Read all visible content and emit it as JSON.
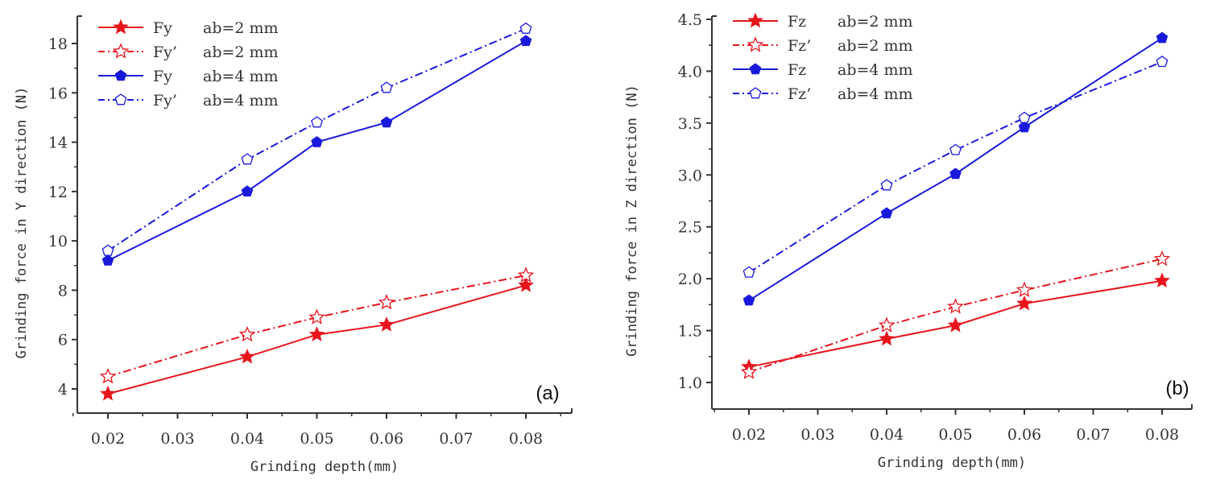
{
  "chart_data": [
    {
      "type": "line",
      "panel_label": "(a)",
      "xlabel": "Grinding depth(mm)",
      "ylabel": "Grinding force in Y direction (N)",
      "x": [
        0.02,
        0.04,
        0.05,
        0.06,
        0.08
      ],
      "xlim": [
        0.014,
        0.084
      ],
      "xticks": [
        0.02,
        0.03,
        0.04,
        0.05,
        0.06,
        0.07,
        0.08
      ],
      "xtick_labels": [
        "0.02",
        "0.03",
        "0.04",
        "0.05",
        "0.06",
        "0.07",
        "0.08"
      ],
      "ylim": [
        3.0,
        18.9
      ],
      "yticks": [
        4,
        6,
        8,
        10,
        12,
        14,
        16,
        18
      ],
      "ytick_labels": [
        "4",
        "6",
        "8",
        "10",
        "12",
        "14",
        "16",
        "18"
      ],
      "grid": false,
      "legend_position": "top-left",
      "series": [
        {
          "name": "Fy",
          "param": "ab=2 mm",
          "values": [
            3.8,
            5.3,
            6.2,
            6.6,
            8.2
          ],
          "color": "#e8141c",
          "style": "solid",
          "marker": "star-filled"
        },
        {
          "name": "Fy’",
          "param": "ab=2 mm",
          "values": [
            4.5,
            6.2,
            6.9,
            7.5,
            8.6
          ],
          "color": "#e8141c",
          "style": "dashdot",
          "marker": "star-open"
        },
        {
          "name": "Fy",
          "param": "ab=4 mm",
          "values": [
            9.2,
            12.0,
            14.0,
            14.8,
            18.1
          ],
          "color": "#1a1adc",
          "style": "solid",
          "marker": "pentagon-filled"
        },
        {
          "name": "Fy’",
          "param": "ab=4 mm",
          "values": [
            9.6,
            13.3,
            14.8,
            16.2,
            18.6
          ],
          "color": "#1a1adc",
          "style": "dashdot",
          "marker": "pentagon-open"
        }
      ]
    },
    {
      "type": "line",
      "panel_label": "(b)",
      "xlabel": "Grinding depth(mm)",
      "ylabel": "Grinding force in Z direction (N)",
      "x": [
        0.02,
        0.04,
        0.05,
        0.06,
        0.08
      ],
      "xlim": [
        0.014,
        0.084
      ],
      "xticks": [
        0.02,
        0.03,
        0.04,
        0.05,
        0.06,
        0.07,
        0.08
      ],
      "xtick_labels": [
        "0.02",
        "0.03",
        "0.04",
        "0.05",
        "0.06",
        "0.07",
        "0.08"
      ],
      "ylim": [
        0.75,
        4.5
      ],
      "yticks": [
        1.0,
        1.5,
        2.0,
        2.5,
        3.0,
        3.5,
        4.0,
        4.5
      ],
      "ytick_labels": [
        "1.0",
        "1.5",
        "2.0",
        "2.5",
        "3.0",
        "3.5",
        "4.0",
        "4.5"
      ],
      "grid": false,
      "legend_position": "top-left",
      "series": [
        {
          "name": "Fz",
          "param": "ab=2 mm",
          "values": [
            1.15,
            1.42,
            1.55,
            1.76,
            1.98
          ],
          "color": "#e8141c",
          "style": "solid",
          "marker": "star-filled"
        },
        {
          "name": "Fz’",
          "param": "ab=2 mm",
          "values": [
            1.1,
            1.55,
            1.73,
            1.89,
            2.19
          ],
          "color": "#e8141c",
          "style": "dashdot",
          "marker": "star-open"
        },
        {
          "name": "Fz",
          "param": "ab=4 mm",
          "values": [
            1.79,
            2.63,
            3.01,
            3.46,
            4.32
          ],
          "color": "#1a1adc",
          "style": "solid",
          "marker": "pentagon-filled"
        },
        {
          "name": "Fz’",
          "param": "ab=4 mm",
          "values": [
            2.06,
            2.9,
            3.24,
            3.55,
            4.09
          ],
          "color": "#1a1adc",
          "style": "dashdot",
          "marker": "pentagon-open"
        }
      ]
    }
  ]
}
